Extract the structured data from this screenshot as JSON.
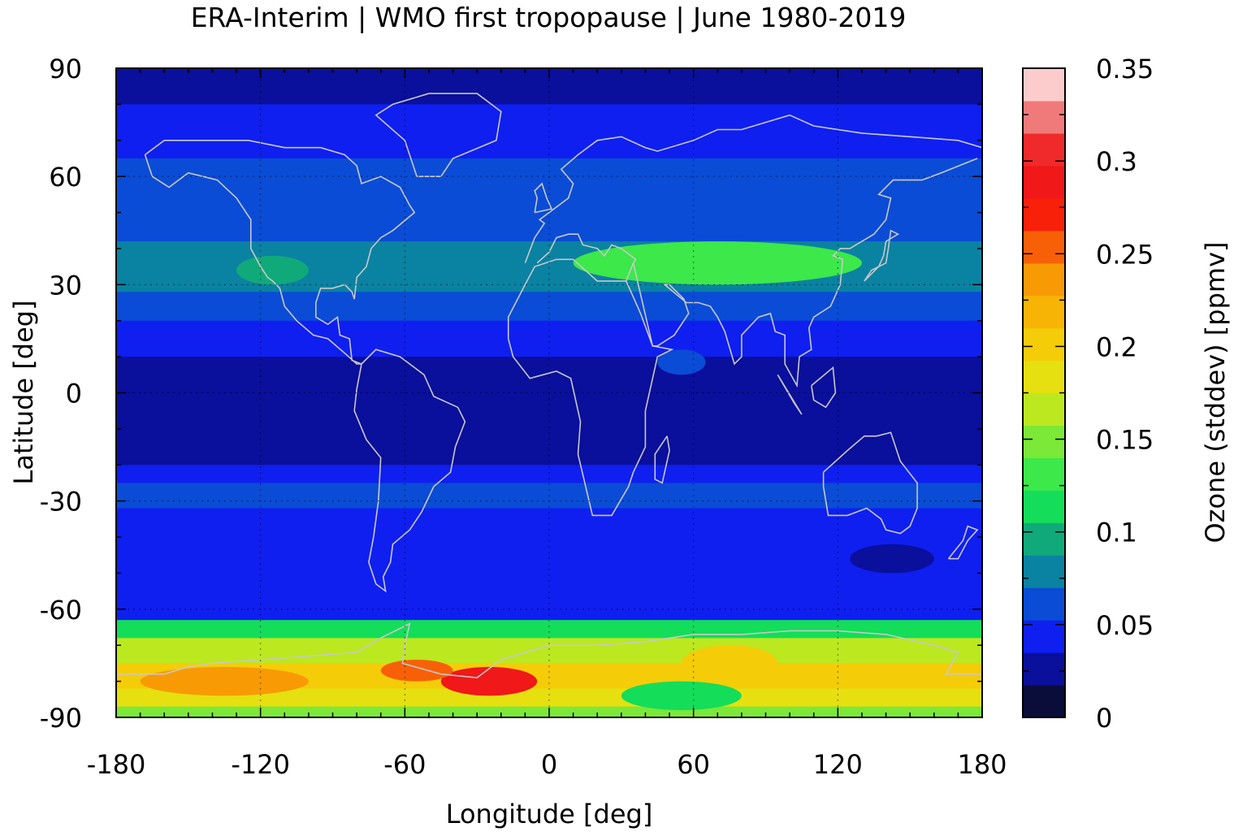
{
  "chart_data": {
    "type": "heatmap",
    "title": "ERA-Interim | WMO first tropopause | June 1980-2019",
    "xlabel": "Longitude [deg]",
    "ylabel": "Latitude [deg]",
    "xlim": [
      -180,
      180
    ],
    "ylim": [
      -90,
      90
    ],
    "xticks": [
      -180,
      -120,
      -60,
      0,
      60,
      120,
      180
    ],
    "yticks": [
      -90,
      -60,
      -30,
      0,
      30,
      60,
      90
    ],
    "xtick_labels": [
      "-180",
      "-120",
      "-60",
      "0",
      "60",
      "120",
      "180"
    ],
    "ytick_labels": [
      "-90",
      "-60",
      "-30",
      "0",
      "30",
      "60",
      "90"
    ],
    "grid": true,
    "colorbar": {
      "label": "Ozone (stddev) [ppmv]",
      "range": [
        0,
        0.35
      ],
      "ticks": [
        0,
        0.05,
        0.1,
        0.15,
        0.2,
        0.25,
        0.3,
        0.35
      ],
      "tick_labels": [
        "0",
        "0.05",
        "0.1",
        "0.15",
        "0.2",
        "0.25",
        "0.3",
        "0.35"
      ],
      "colors": [
        "#0a0c3a",
        "#0a0f9c",
        "#0f1ff0",
        "#0a4cd6",
        "#0a82a2",
        "#10aa7a",
        "#14dd5a",
        "#3ce84a",
        "#7ce838",
        "#bce820",
        "#e6e010",
        "#f4cc08",
        "#f8b404",
        "#f89a04",
        "#f86008",
        "#f82008",
        "#f01818",
        "#f02a2a",
        "#f07a7a",
        "#fccccc"
      ]
    },
    "latitude_bands": [
      {
        "lat": [
          80,
          90
        ],
        "value": 0.025
      },
      {
        "lat": [
          65,
          80
        ],
        "value": 0.04
      },
      {
        "lat": [
          52,
          65
        ],
        "value": 0.055
      },
      {
        "lat": [
          42,
          52
        ],
        "value": 0.065
      },
      {
        "lat": [
          28,
          42
        ],
        "value": 0.08
      },
      {
        "lat": [
          20,
          28
        ],
        "value": 0.065
      },
      {
        "lat": [
          10,
          20
        ],
        "value": 0.045
      },
      {
        "lat": [
          -20,
          10
        ],
        "value": 0.025
      },
      {
        "lat": [
          -25,
          -20
        ],
        "value": 0.04
      },
      {
        "lat": [
          -32,
          -25
        ],
        "value": 0.06
      },
      {
        "lat": [
          -38,
          -32
        ],
        "value": 0.045
      },
      {
        "lat": [
          -63,
          -38
        ],
        "value": 0.04
      },
      {
        "lat": [
          -68,
          -63
        ],
        "value": 0.12
      },
      {
        "lat": [
          -75,
          -68
        ],
        "value": 0.17
      },
      {
        "lat": [
          -82,
          -75
        ],
        "value": 0.2
      },
      {
        "lat": [
          -87,
          -82
        ],
        "value": 0.19
      },
      {
        "lat": [
          -90,
          -87
        ],
        "value": 0.14
      }
    ],
    "features": [
      {
        "lon": [
          10,
          130
        ],
        "lat": [
          30,
          42
        ],
        "value": 0.125
      },
      {
        "lon": [
          -130,
          -100
        ],
        "lat": [
          30,
          38
        ],
        "value": 0.095
      },
      {
        "lon": [
          -45,
          -5
        ],
        "lat": [
          -84,
          -76
        ],
        "value": 0.29
      },
      {
        "lon": [
          -70,
          -40
        ],
        "lat": [
          -80,
          -74
        ],
        "value": 0.25
      },
      {
        "lon": [
          -170,
          -100
        ],
        "lat": [
          -84,
          -76
        ],
        "value": 0.23
      },
      {
        "lon": [
          125,
          160
        ],
        "lat": [
          -50,
          -42
        ],
        "value": 0.025
      },
      {
        "lon": [
          55,
          95
        ],
        "lat": [
          -80,
          -70
        ],
        "value": 0.2
      },
      {
        "lon": [
          30,
          80
        ],
        "lat": [
          -88,
          -80
        ],
        "value": 0.12
      },
      {
        "lon": [
          45,
          65
        ],
        "lat": [
          5,
          12
        ],
        "value": 0.06
      }
    ]
  }
}
